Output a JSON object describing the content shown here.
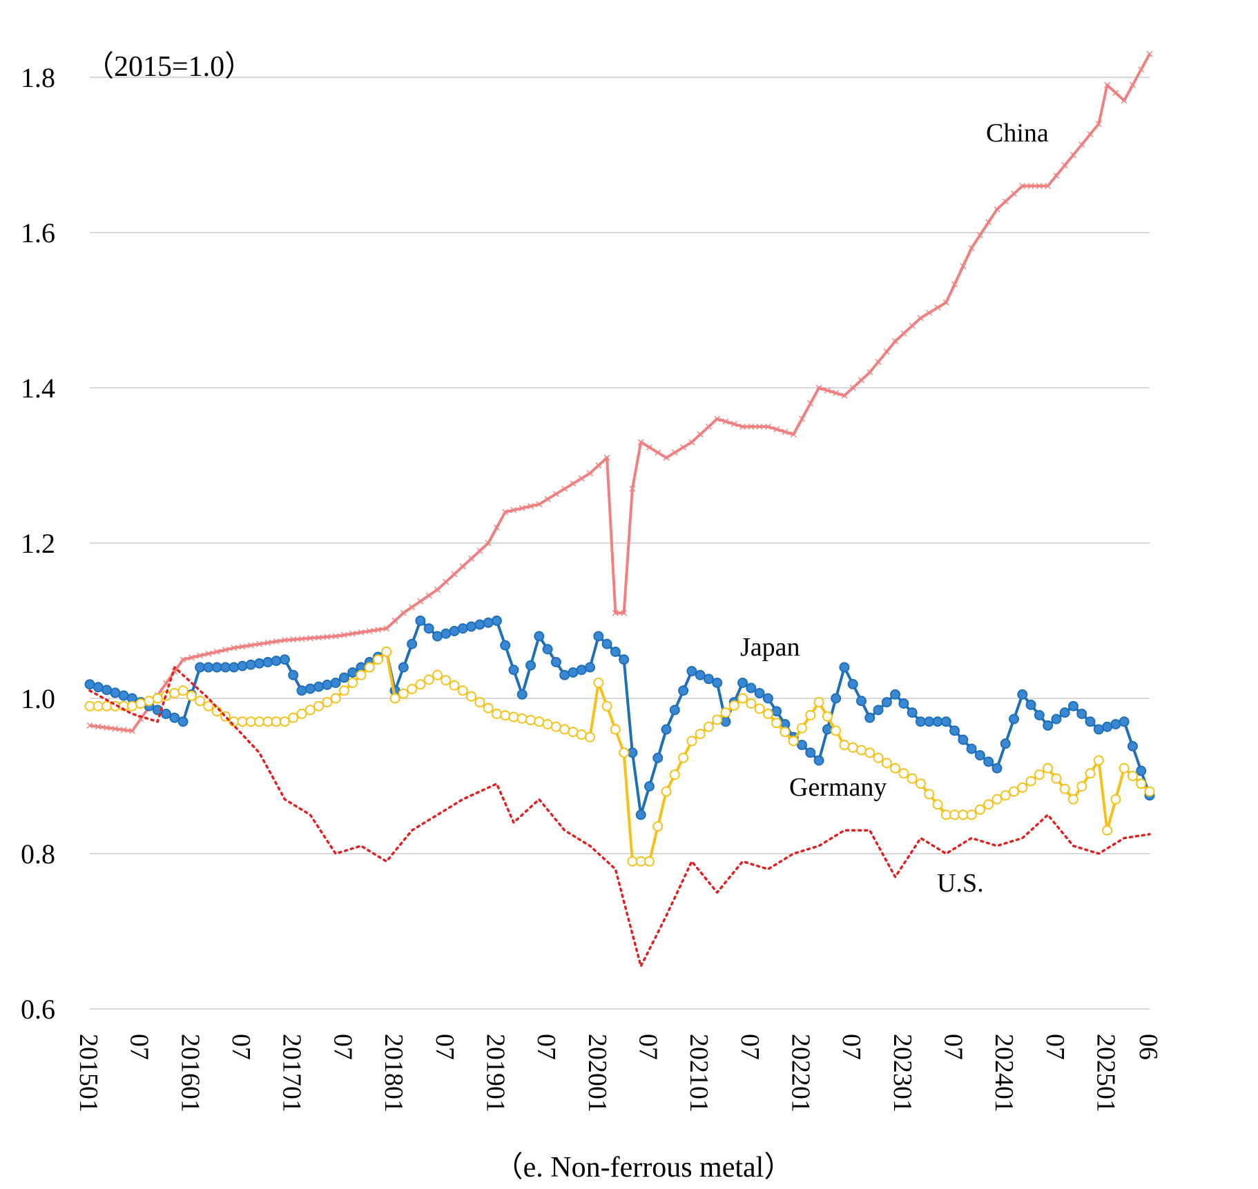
{
  "chart_data": {
    "type": "line",
    "title": "",
    "note": "（2015=1.0）",
    "caption": "（e. Non-ferrous metal）",
    "xlabel": "",
    "ylabel": "",
    "ylim": [
      0.6,
      1.8
    ],
    "y_ticks": [
      "0.6",
      "0.8",
      "1.0",
      "1.2",
      "1.4",
      "1.6",
      "1.8"
    ],
    "grid": true,
    "x_ticks": [
      "201501",
      "07",
      "201601",
      "07",
      "201701",
      "07",
      "201801",
      "07",
      "201901",
      "07",
      "202001",
      "07",
      "202101",
      "07",
      "202201",
      "07",
      "202301",
      "07",
      "202401",
      "07",
      "202501",
      "06"
    ],
    "x_start": "2015-01",
    "x_end": "2025-06",
    "series": [
      {
        "name": "China",
        "color": "#f08080",
        "marker": "x",
        "line": "solid",
        "points": [
          [
            "2015-01",
            0.965
          ],
          [
            "2015-06",
            0.958
          ],
          [
            "2015-12",
            1.05
          ],
          [
            "2016-06",
            1.065
          ],
          [
            "2016-12",
            1.075
          ],
          [
            "2017-06",
            1.08
          ],
          [
            "2017-12",
            1.09
          ],
          [
            "2018-02",
            1.11
          ],
          [
            "2018-06",
            1.14
          ],
          [
            "2018-12",
            1.2
          ],
          [
            "2019-02",
            1.24
          ],
          [
            "2019-06",
            1.25
          ],
          [
            "2019-12",
            1.29
          ],
          [
            "2020-02",
            1.31
          ],
          [
            "2020-03",
            1.11
          ],
          [
            "2020-04",
            1.11
          ],
          [
            "2020-05",
            1.27
          ],
          [
            "2020-06",
            1.33
          ],
          [
            "2020-09",
            1.31
          ],
          [
            "2020-12",
            1.33
          ],
          [
            "2021-03",
            1.36
          ],
          [
            "2021-06",
            1.35
          ],
          [
            "2021-09",
            1.35
          ],
          [
            "2021-12",
            1.34
          ],
          [
            "2022-03",
            1.4
          ],
          [
            "2022-06",
            1.39
          ],
          [
            "2022-09",
            1.42
          ],
          [
            "2022-12",
            1.46
          ],
          [
            "2023-03",
            1.49
          ],
          [
            "2023-06",
            1.51
          ],
          [
            "2023-09",
            1.58
          ],
          [
            "2023-12",
            1.63
          ],
          [
            "2024-03",
            1.66
          ],
          [
            "2024-06",
            1.66
          ],
          [
            "2024-09",
            1.7
          ],
          [
            "2024-12",
            1.74
          ],
          [
            "2025-01",
            1.79
          ],
          [
            "2025-03",
            1.77
          ],
          [
            "2025-06",
            1.83
          ]
        ]
      },
      {
        "name": "Japan",
        "color": "#1f6fb8",
        "marker": "circle-filled",
        "line": "solid",
        "points": [
          [
            "2015-01",
            1.018
          ],
          [
            "2015-06",
            1.0
          ],
          [
            "2015-12",
            0.97
          ],
          [
            "2016-02",
            1.04
          ],
          [
            "2016-06",
            1.04
          ],
          [
            "2016-12",
            1.05
          ],
          [
            "2017-02",
            1.01
          ],
          [
            "2017-06",
            1.02
          ],
          [
            "2017-12",
            1.06
          ],
          [
            "2018-01",
            1.01
          ],
          [
            "2018-04",
            1.1
          ],
          [
            "2018-06",
            1.08
          ],
          [
            "2018-09",
            1.09
          ],
          [
            "2019-01",
            1.1
          ],
          [
            "2019-04",
            1.005
          ],
          [
            "2019-06",
            1.08
          ],
          [
            "2019-09",
            1.03
          ],
          [
            "2019-12",
            1.04
          ],
          [
            "2020-01",
            1.08
          ],
          [
            "2020-04",
            1.05
          ],
          [
            "2020-05",
            0.93
          ],
          [
            "2020-06",
            0.85
          ],
          [
            "2020-09",
            0.96
          ],
          [
            "2020-12",
            1.035
          ],
          [
            "2021-03",
            1.02
          ],
          [
            "2021-04",
            0.97
          ],
          [
            "2021-06",
            1.02
          ],
          [
            "2021-09",
            1.0
          ],
          [
            "2021-12",
            0.95
          ],
          [
            "2022-03",
            0.92
          ],
          [
            "2022-06",
            1.04
          ],
          [
            "2022-09",
            0.975
          ],
          [
            "2022-12",
            1.005
          ],
          [
            "2023-03",
            0.97
          ],
          [
            "2023-06",
            0.97
          ],
          [
            "2023-09",
            0.935
          ],
          [
            "2023-12",
            0.91
          ],
          [
            "2024-03",
            1.005
          ],
          [
            "2024-06",
            0.965
          ],
          [
            "2024-09",
            0.99
          ],
          [
            "2024-12",
            0.96
          ],
          [
            "2025-03",
            0.97
          ],
          [
            "2025-06",
            0.875
          ]
        ]
      },
      {
        "name": "Germany",
        "color": "#f5c118",
        "marker": "circle-open",
        "line": "solid",
        "points": [
          [
            "2015-01",
            0.99
          ],
          [
            "2015-06",
            0.99
          ],
          [
            "2015-12",
            1.01
          ],
          [
            "2016-06",
            0.97
          ],
          [
            "2016-12",
            0.97
          ],
          [
            "2017-06",
            1.0
          ],
          [
            "2017-12",
            1.06
          ],
          [
            "2018-01",
            1.0
          ],
          [
            "2018-06",
            1.03
          ],
          [
            "2018-09",
            1.01
          ],
          [
            "2019-01",
            0.98
          ],
          [
            "2019-06",
            0.97
          ],
          [
            "2019-12",
            0.95
          ],
          [
            "2020-01",
            1.02
          ],
          [
            "2020-04",
            0.93
          ],
          [
            "2020-05",
            0.79
          ],
          [
            "2020-07",
            0.79
          ],
          [
            "2020-09",
            0.88
          ],
          [
            "2020-12",
            0.945
          ],
          [
            "2021-06",
            1.0
          ],
          [
            "2021-09",
            0.98
          ],
          [
            "2021-12",
            0.945
          ],
          [
            "2022-03",
            0.995
          ],
          [
            "2022-06",
            0.94
          ],
          [
            "2022-09",
            0.93
          ],
          [
            "2022-12",
            0.91
          ],
          [
            "2023-03",
            0.89
          ],
          [
            "2023-06",
            0.85
          ],
          [
            "2023-09",
            0.85
          ],
          [
            "2023-12",
            0.87
          ],
          [
            "2024-03",
            0.885
          ],
          [
            "2024-06",
            0.91
          ],
          [
            "2024-09",
            0.87
          ],
          [
            "2024-12",
            0.92
          ],
          [
            "2025-01",
            0.83
          ],
          [
            "2025-03",
            0.91
          ],
          [
            "2025-06",
            0.88
          ]
        ]
      },
      {
        "name": "U.S.",
        "color": "#e02020",
        "marker": "none",
        "line": "dotted",
        "points": [
          [
            "2015-01",
            1.01
          ],
          [
            "2015-06",
            0.98
          ],
          [
            "2015-09",
            0.97
          ],
          [
            "2015-11",
            1.04
          ],
          [
            "2016-03",
            1.0
          ],
          [
            "2016-09",
            0.93
          ],
          [
            "2016-12",
            0.87
          ],
          [
            "2017-03",
            0.85
          ],
          [
            "2017-06",
            0.8
          ],
          [
            "2017-09",
            0.81
          ],
          [
            "2017-12",
            0.79
          ],
          [
            "2018-03",
            0.83
          ],
          [
            "2018-06",
            0.85
          ],
          [
            "2018-09",
            0.87
          ],
          [
            "2019-01",
            0.89
          ],
          [
            "2019-03",
            0.84
          ],
          [
            "2019-06",
            0.87
          ],
          [
            "2019-09",
            0.83
          ],
          [
            "2019-12",
            0.81
          ],
          [
            "2020-03",
            0.78
          ],
          [
            "2020-06",
            0.655
          ],
          [
            "2020-09",
            0.72
          ],
          [
            "2020-12",
            0.79
          ],
          [
            "2021-03",
            0.75
          ],
          [
            "2021-06",
            0.79
          ],
          [
            "2021-09",
            0.78
          ],
          [
            "2021-12",
            0.8
          ],
          [
            "2022-03",
            0.81
          ],
          [
            "2022-06",
            0.83
          ],
          [
            "2022-09",
            0.83
          ],
          [
            "2022-12",
            0.77
          ],
          [
            "2023-03",
            0.82
          ],
          [
            "2023-06",
            0.8
          ],
          [
            "2023-09",
            0.82
          ],
          [
            "2023-12",
            0.81
          ],
          [
            "2024-03",
            0.82
          ],
          [
            "2024-06",
            0.85
          ],
          [
            "2024-09",
            0.81
          ],
          [
            "2024-12",
            0.8
          ],
          [
            "2025-03",
            0.82
          ],
          [
            "2025-06",
            0.825
          ]
        ]
      }
    ]
  }
}
